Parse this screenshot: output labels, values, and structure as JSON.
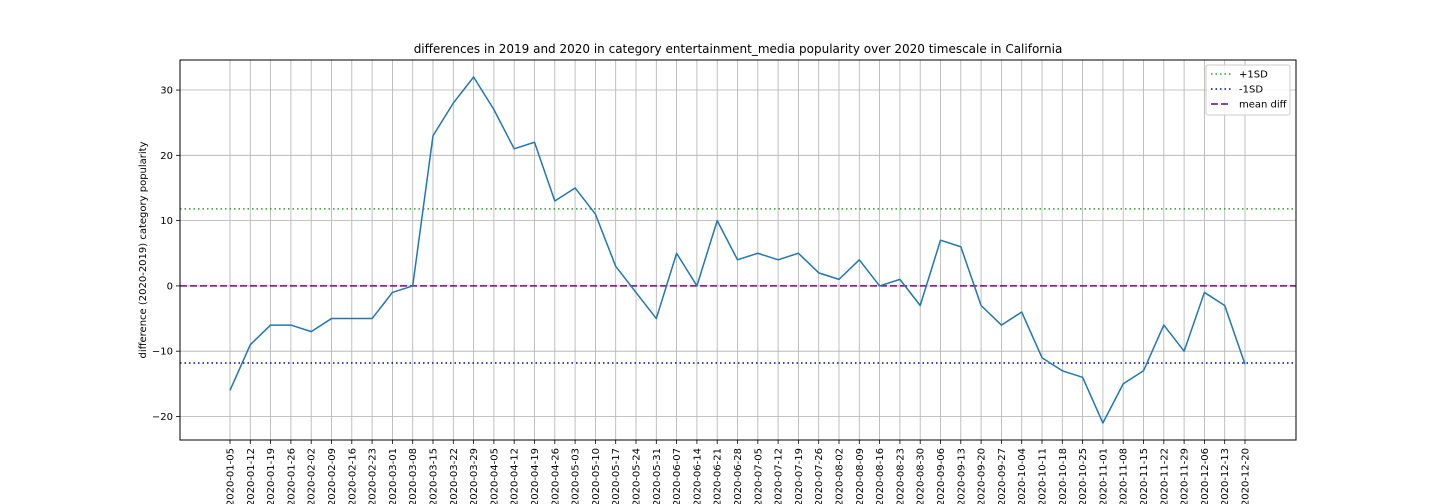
{
  "chart_data": {
    "type": "line",
    "title": "differences in 2019 and 2020 in category entertainment_media popularity over 2020 timescale in California",
    "xlabel": "",
    "ylabel": "difference (2020-2019) category popularity",
    "ylim": [
      -23.6,
      34.6
    ],
    "yticks": [
      -20,
      -10,
      0,
      10,
      20,
      30
    ],
    "grid": true,
    "legend_position": "top-right",
    "x": [
      "2020-01-05",
      "2020-01-12",
      "2020-01-19",
      "2020-01-26",
      "2020-02-02",
      "2020-02-09",
      "2020-02-16",
      "2020-02-23",
      "2020-03-01",
      "2020-03-08",
      "2020-03-15",
      "2020-03-22",
      "2020-03-29",
      "2020-04-05",
      "2020-04-12",
      "2020-04-19",
      "2020-04-26",
      "2020-05-03",
      "2020-05-10",
      "2020-05-17",
      "2020-05-24",
      "2020-05-31",
      "2020-06-07",
      "2020-06-14",
      "2020-06-21",
      "2020-06-28",
      "2020-07-05",
      "2020-07-12",
      "2020-07-19",
      "2020-07-26",
      "2020-08-02",
      "2020-08-09",
      "2020-08-16",
      "2020-08-23",
      "2020-08-30",
      "2020-09-06",
      "2020-09-13",
      "2020-09-20",
      "2020-09-27",
      "2020-10-04",
      "2020-10-11",
      "2020-10-18",
      "2020-10-25",
      "2020-11-01",
      "2020-11-08",
      "2020-11-15",
      "2020-11-22",
      "2020-11-29",
      "2020-12-06",
      "2020-12-13",
      "2020-12-20"
    ],
    "series": [
      {
        "values": [
          -16,
          -9,
          -6,
          -6,
          -7,
          -5,
          -5,
          -5,
          -1,
          0,
          23,
          28,
          32,
          27,
          21,
          22,
          13,
          15,
          11,
          3,
          -1,
          -5,
          5,
          0,
          10,
          4,
          5,
          4,
          5,
          2,
          1,
          4,
          0,
          1,
          -3,
          7,
          6,
          -3,
          -6,
          -4,
          -11,
          -13,
          -14,
          -21,
          -15,
          -13,
          -6,
          -10,
          -1,
          -3,
          -12
        ],
        "color": "#1f77b4"
      }
    ],
    "reference_lines": [
      {
        "name": "+1SD",
        "value": 11.8,
        "color": "#2ca02c",
        "style": "dotted"
      },
      {
        "name": "-1SD",
        "value": -11.8,
        "color": "#0000cc",
        "style": "dotted"
      },
      {
        "name": "mean diff",
        "value": 0,
        "color": "#800080",
        "style": "dashed"
      }
    ]
  }
}
